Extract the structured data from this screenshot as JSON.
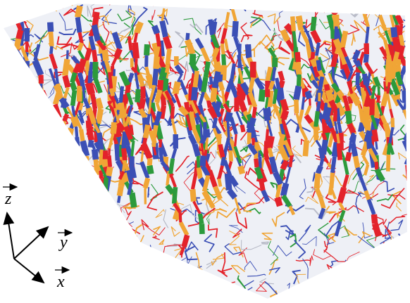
{
  "axes": {
    "z": "z",
    "y": "y",
    "x": "x"
  }
}
